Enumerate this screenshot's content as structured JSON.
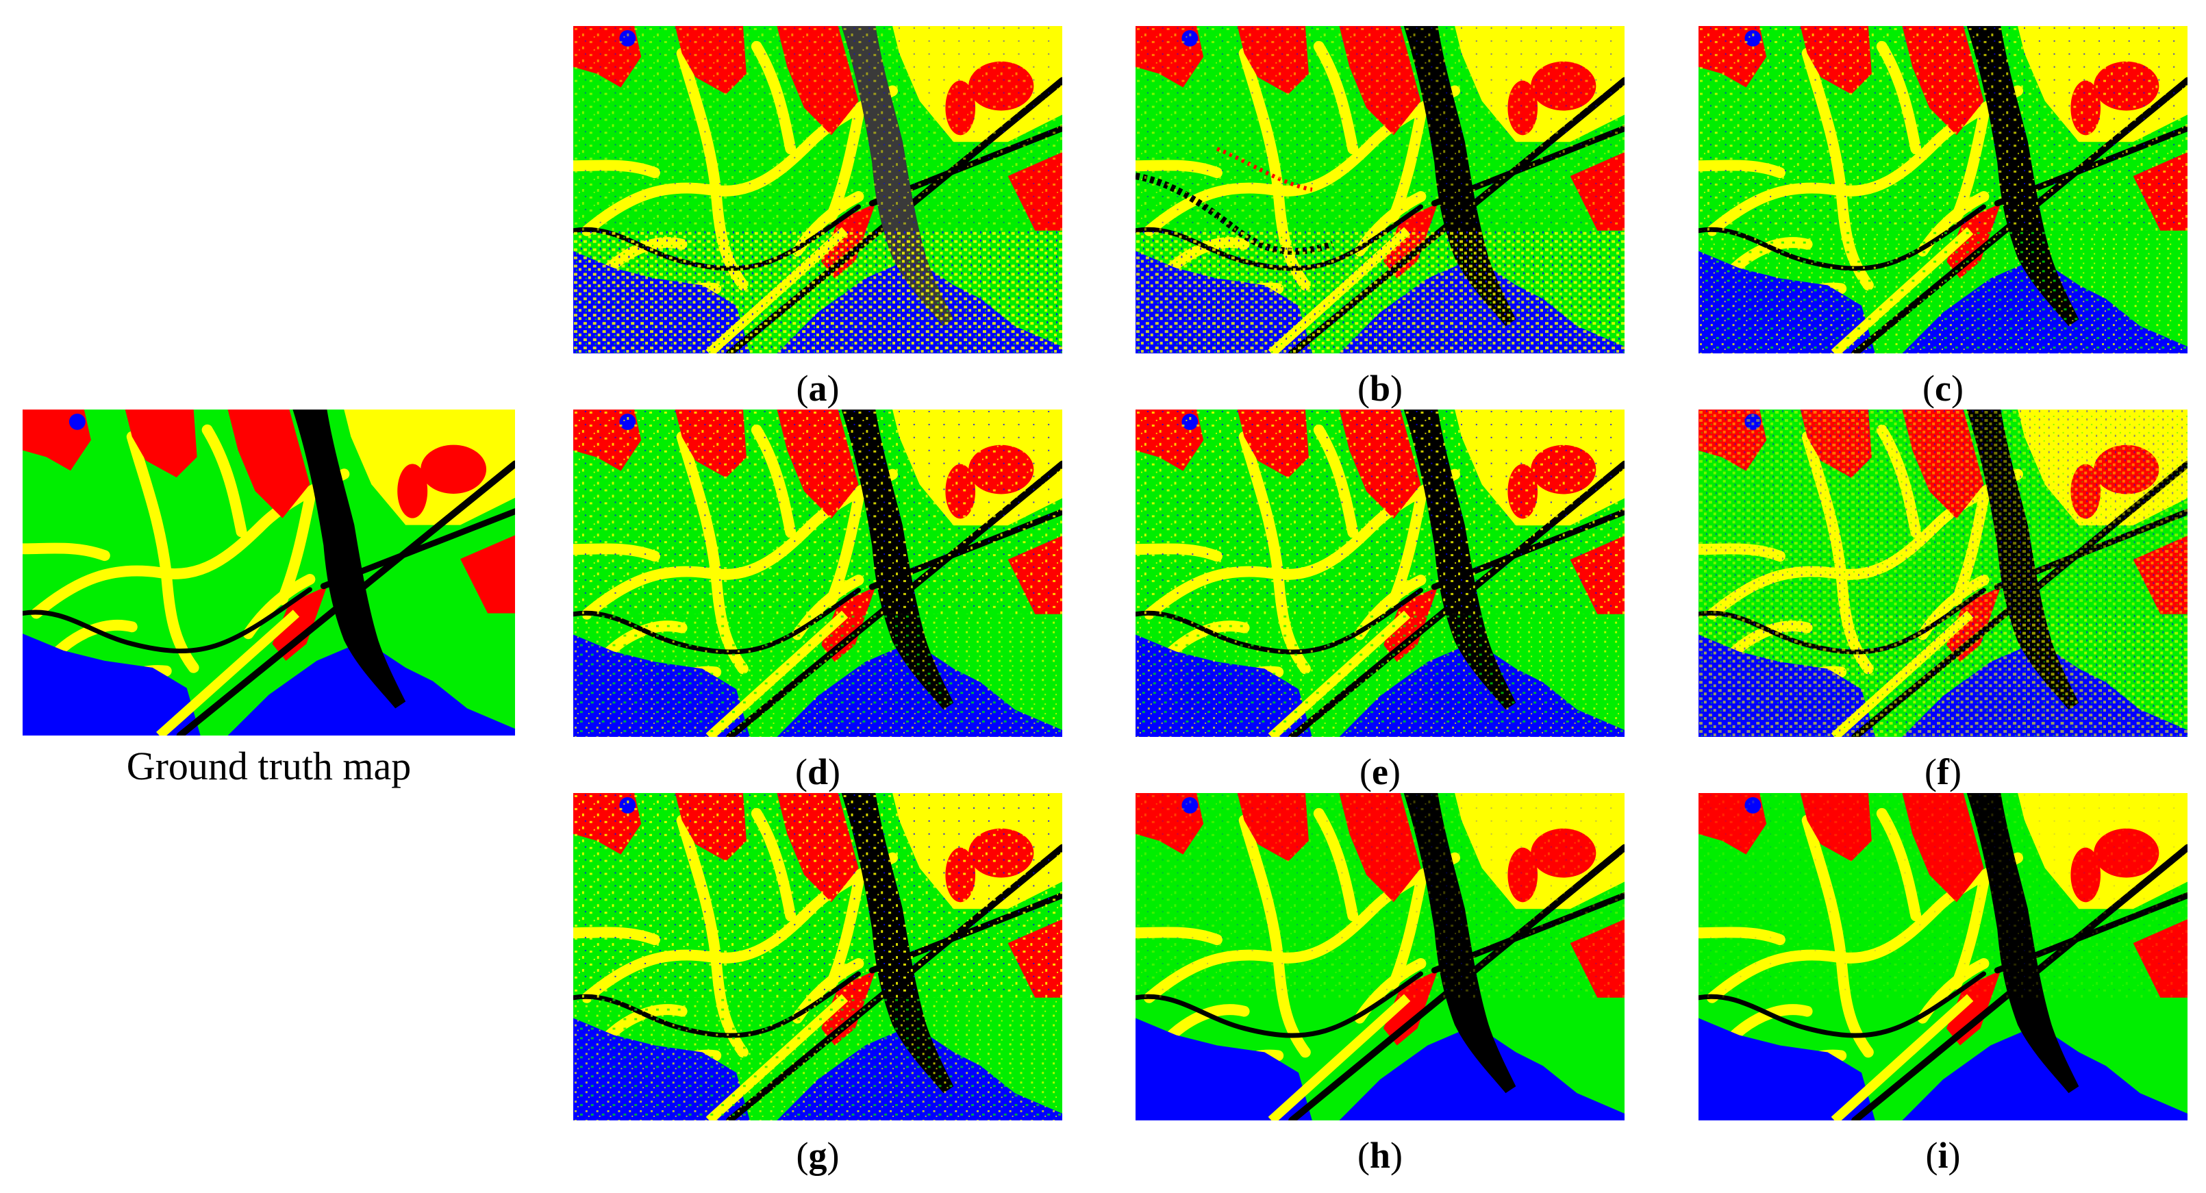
{
  "figure": {
    "ground_truth_caption": "Ground truth map",
    "panel_labels": [
      "a",
      "b",
      "c",
      "d",
      "e",
      "f",
      "g",
      "h",
      "i"
    ],
    "class_colors": {
      "vegetation": "#00ee00",
      "built_up": "#ff0000",
      "water": "#0000ff",
      "bare_soil": "#ffff00",
      "river_roads": "#000000",
      "unclassified": "#3a3a3a"
    }
  }
}
